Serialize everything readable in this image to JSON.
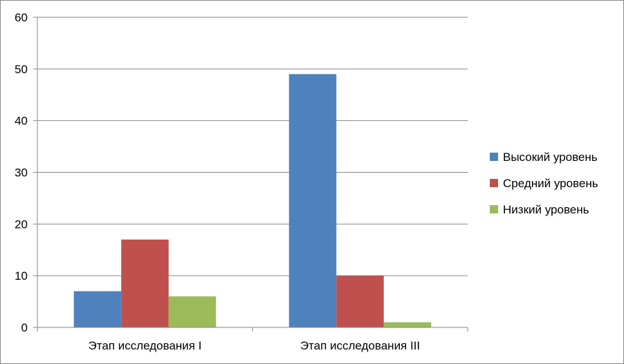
{
  "chart_data": {
    "type": "bar",
    "categories": [
      "Этап исследования I",
      "Этап исследования III"
    ],
    "series": [
      {
        "name": "Высокий уровень",
        "values": [
          7,
          49
        ],
        "color": "#4F81BD"
      },
      {
        "name": "Средний уровень",
        "values": [
          17,
          10
        ],
        "color": "#C0504D"
      },
      {
        "name": "Низкий уровень",
        "values": [
          6,
          1
        ],
        "color": "#9BBB59"
      }
    ],
    "ylim": [
      0,
      60
    ],
    "yticks": [
      0,
      10,
      20,
      30,
      40,
      50,
      60
    ],
    "grid": true,
    "legend": "right"
  }
}
